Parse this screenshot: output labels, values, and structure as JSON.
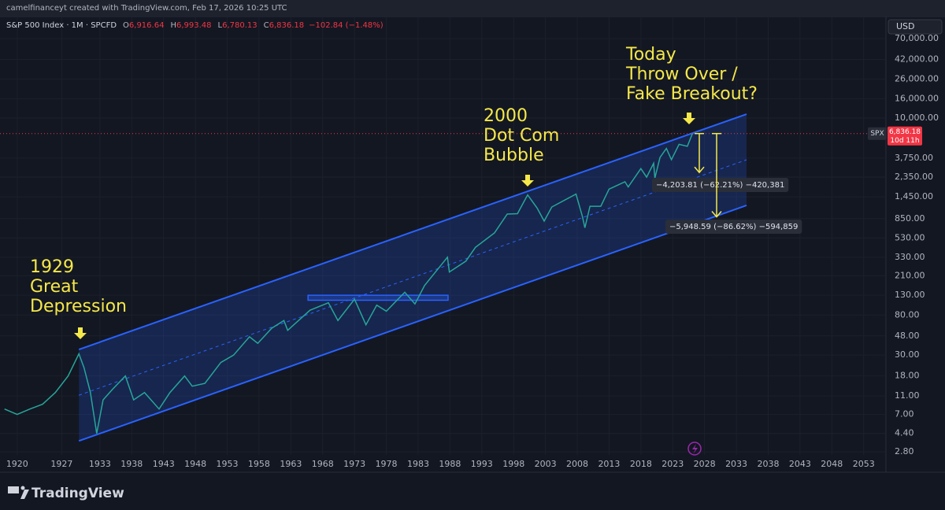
{
  "header": {
    "credit": "camelfinanceyt created with TradingView.com, Feb 17, 2026 10:25 UTC"
  },
  "chart_data": {
    "type": "line",
    "symbol": "S&P 500 Index · 1M · SPCFD",
    "ohlc": [
      {
        "key": "O",
        "value": "6,916.64"
      },
      {
        "key": "H",
        "value": "6,993.48"
      },
      {
        "key": "L",
        "value": "6,780.13"
      },
      {
        "key": "C",
        "value": "6,836.18"
      }
    ],
    "change": "−102.84 (−1.48%)",
    "currency": "USD",
    "log_scale": true,
    "grid": true,
    "x": [
      1918,
      1920,
      1922,
      1924,
      1926,
      1928,
      1929.7,
      1930.5,
      1931.5,
      1932.5,
      1933.5,
      1935,
      1937,
      1938.3,
      1940,
      1942.3,
      1944,
      1946.3,
      1947.5,
      1949.5,
      1952,
      1954,
      1956.5,
      1957.8,
      1960,
      1961.9,
      1962.5,
      1966,
      1968.9,
      1970.4,
      1973,
      1974.8,
      1976.5,
      1978,
      1980.9,
      1982.5,
      1984,
      1987.6,
      1987.9,
      1990.5,
      1992,
      1995,
      1997,
      1998.6,
      2000.2,
      2001.7,
      2002.8,
      2004,
      2007.8,
      2008.8,
      2009.2,
      2010,
      2011.7,
      2013,
      2015.5,
      2016,
      2018,
      2018.9,
      2020,
      2020.2,
      2021,
      2022,
      2022.8,
      2024,
      2025.3,
      2026.1
    ],
    "series": [
      {
        "color": "#26a69a",
        "values": [
          8,
          7,
          8,
          9,
          12,
          18,
          31,
          22,
          12,
          4.4,
          10,
          13,
          18,
          10,
          12,
          8,
          12,
          18,
          14,
          15,
          25,
          30,
          47,
          40,
          58,
          70,
          55,
          90,
          108,
          70,
          118,
          63,
          102,
          88,
          140,
          105,
          165,
          330,
          230,
          300,
          420,
          600,
          950,
          960,
          1520,
          1100,
          800,
          1130,
          1550,
          900,
          680,
          1150,
          1150,
          1750,
          2100,
          1850,
          2900,
          2350,
          3300,
          2300,
          3800,
          4750,
          3600,
          5250,
          5000,
          6836.18
        ]
      }
    ],
    "last_price": {
      "symbol": "SPX",
      "value": 6836.18,
      "label": "6,836.18",
      "countdown": "10d 11h",
      "color": "#f23645"
    },
    "channel": {
      "x": [
        1929.7,
        2034.6
      ],
      "upper": [
        34.4,
        11000
      ],
      "lower": [
        3.66,
        1175
      ],
      "color": "#2962ff"
    },
    "highlight_box": {
      "x": [
        1965.7,
        1987.7
      ],
      "y": [
        115,
        130
      ]
    },
    "annotations": [
      {
        "lines": [
          "1929",
          "Great",
          "Depression"
        ]
      },
      {
        "lines": [
          "2000",
          "Dot Com",
          "Bubble"
        ]
      },
      {
        "lines": [
          "Today",
          "Throw Over /",
          "Fake Breakout?"
        ]
      }
    ],
    "measures": [
      {
        "change": -4203.81,
        "label": "−4,203.81 (−62.21%) −420,381"
      },
      {
        "change": -5948.59,
        "label": "−5,948.59 (−86.62%) −594,859"
      }
    ],
    "xlim": [
      1917.3,
      2056.5
    ],
    "xticks": [
      1920,
      1927,
      1933,
      1938,
      1943,
      1948,
      1953,
      1958,
      1963,
      1968,
      1973,
      1978,
      1983,
      1988,
      1993,
      1998,
      2003,
      2008,
      2013,
      2018,
      2023,
      2028,
      2033,
      2038,
      2043,
      2048,
      2053
    ],
    "ylim": [
      1.7,
      118000
    ],
    "yticks": [
      {
        "value": 2.8,
        "label": "2.80"
      },
      {
        "value": 4.4,
        "label": "4.40"
      },
      {
        "value": 7,
        "label": "7.00"
      },
      {
        "value": 11,
        "label": "11.00"
      },
      {
        "value": 18,
        "label": "18.00"
      },
      {
        "value": 30,
        "label": "30.00"
      },
      {
        "value": 48,
        "label": "48.00"
      },
      {
        "value": 80,
        "label": "80.00"
      },
      {
        "value": 130,
        "label": "130.00"
      },
      {
        "value": 210,
        "label": "210.00"
      },
      {
        "value": 330,
        "label": "330.00"
      },
      {
        "value": 530,
        "label": "530.00"
      },
      {
        "value": 850,
        "label": "850.00"
      },
      {
        "value": 1450,
        "label": "1,450.00"
      },
      {
        "value": 2350,
        "label": "2,350.00"
      },
      {
        "value": 3750,
        "label": "3,750.00"
      },
      {
        "value": 10000,
        "label": "10,000.00"
      },
      {
        "value": 16000,
        "label": "16,000.00"
      },
      {
        "value": 26000,
        "label": "26,000.00"
      },
      {
        "value": 42000,
        "label": "42,000.00"
      },
      {
        "value": 70000,
        "label": "70,000.00"
      }
    ]
  },
  "footer": {
    "brand": "TradingView"
  }
}
